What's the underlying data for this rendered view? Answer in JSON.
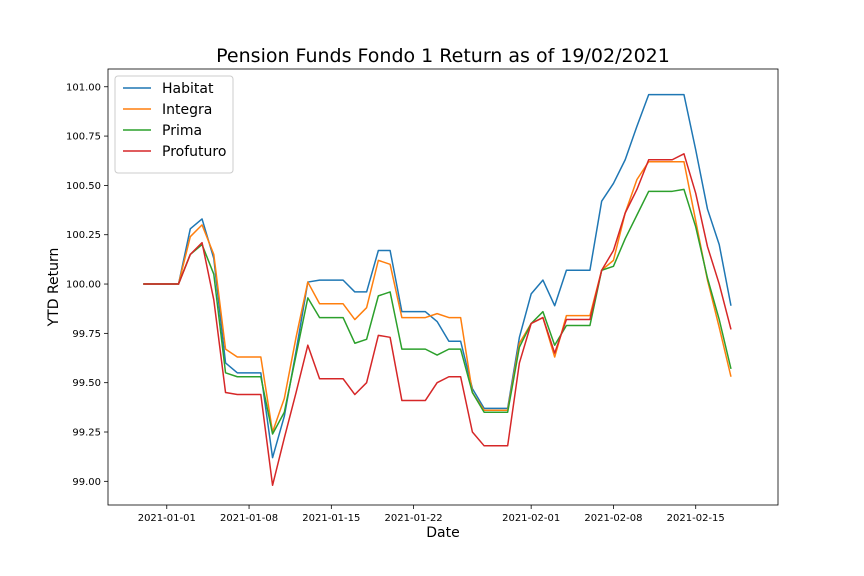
{
  "chart_data": {
    "type": "line",
    "title": "Pension Funds Fondo 1 Return as of 19/02/2021",
    "xlabel": "Date",
    "ylabel": "YTD Return",
    "x_ticks": [
      "2021-01-01",
      "2021-01-08",
      "2021-01-15",
      "2021-01-22",
      "2021-02-01",
      "2021-02-08",
      "2021-02-15"
    ],
    "y_ticks": [
      "99.00",
      "99.25",
      "99.50",
      "99.75",
      "100.00",
      "100.25",
      "100.50",
      "100.75",
      "101.00"
    ],
    "ylim": [
      98.88,
      101.09
    ],
    "xlim": [
      "2020-12-27",
      "2021-02-22"
    ],
    "legend_position": "top-left",
    "grid": false,
    "x": [
      "2020-12-30",
      "2020-12-31",
      "2021-01-01",
      "2021-01-02",
      "2021-01-03",
      "2021-01-04",
      "2021-01-05",
      "2021-01-06",
      "2021-01-07",
      "2021-01-08",
      "2021-01-09",
      "2021-01-10",
      "2021-01-11",
      "2021-01-12",
      "2021-01-13",
      "2021-01-14",
      "2021-01-15",
      "2021-01-16",
      "2021-01-17",
      "2021-01-18",
      "2021-01-19",
      "2021-01-20",
      "2021-01-21",
      "2021-01-22",
      "2021-01-23",
      "2021-01-24",
      "2021-01-25",
      "2021-01-26",
      "2021-01-27",
      "2021-01-28",
      "2021-01-29",
      "2021-01-30",
      "2021-01-31",
      "2021-02-01",
      "2021-02-02",
      "2021-02-03",
      "2021-02-04",
      "2021-02-05",
      "2021-02-06",
      "2021-02-07",
      "2021-02-08",
      "2021-02-09",
      "2021-02-10",
      "2021-02-11",
      "2021-02-12",
      "2021-02-13",
      "2021-02-14",
      "2021-02-15",
      "2021-02-16",
      "2021-02-17",
      "2021-02-18",
      "2021-02-19"
    ],
    "series": [
      {
        "name": "Habitat",
        "color": "#1f77b4",
        "values": [
          100.0,
          100.0,
          100.0,
          100.0,
          100.28,
          100.33,
          100.13,
          99.6,
          99.55,
          99.55,
          99.55,
          99.12,
          99.33,
          99.66,
          100.01,
          100.02,
          100.02,
          100.02,
          99.96,
          99.96,
          100.17,
          100.17,
          99.86,
          99.86,
          99.86,
          99.81,
          99.71,
          99.71,
          99.47,
          99.37,
          99.37,
          99.37,
          99.73,
          99.95,
          100.02,
          99.89,
          100.07,
          100.07,
          100.07,
          100.42,
          100.51,
          100.63,
          100.8,
          100.96,
          100.96,
          100.96,
          100.96,
          100.68,
          100.38,
          100.2,
          99.89,
          null
        ]
      },
      {
        "name": "Integra",
        "color": "#ff7f0e",
        "values": [
          100.0,
          100.0,
          100.0,
          100.0,
          100.24,
          100.3,
          100.15,
          99.67,
          99.63,
          99.63,
          99.63,
          99.25,
          99.42,
          99.73,
          100.01,
          99.9,
          99.9,
          99.9,
          99.82,
          99.88,
          100.12,
          100.1,
          99.83,
          99.83,
          99.83,
          99.85,
          99.83,
          99.83,
          99.45,
          99.36,
          99.36,
          99.36,
          99.7,
          99.8,
          99.83,
          99.63,
          99.84,
          99.84,
          99.84,
          100.07,
          100.12,
          100.36,
          100.53,
          100.62,
          100.62,
          100.62,
          100.62,
          100.32,
          100.02,
          99.78,
          99.53,
          null
        ]
      },
      {
        "name": "Prima",
        "color": "#2ca02c",
        "values": [
          100.0,
          100.0,
          100.0,
          100.0,
          100.15,
          100.2,
          100.05,
          99.55,
          99.53,
          99.53,
          99.53,
          99.24,
          99.35,
          99.64,
          99.93,
          99.83,
          99.83,
          99.83,
          99.7,
          99.72,
          99.94,
          99.96,
          99.67,
          99.67,
          99.67,
          99.64,
          99.67,
          99.67,
          99.45,
          99.35,
          99.35,
          99.35,
          99.68,
          99.8,
          99.86,
          99.69,
          99.79,
          99.79,
          99.79,
          100.07,
          100.09,
          100.23,
          100.35,
          100.47,
          100.47,
          100.47,
          100.48,
          100.29,
          100.03,
          99.82,
          99.57,
          null
        ]
      },
      {
        "name": "Profuturo",
        "color": "#d62728",
        "values": [
          100.0,
          100.0,
          100.0,
          100.0,
          100.15,
          100.21,
          99.92,
          99.45,
          99.44,
          99.44,
          99.44,
          98.98,
          99.22,
          99.45,
          99.69,
          99.52,
          99.52,
          99.52,
          99.44,
          99.5,
          99.74,
          99.73,
          99.41,
          99.41,
          99.41,
          99.5,
          99.53,
          99.53,
          99.25,
          99.18,
          99.18,
          99.18,
          99.6,
          99.8,
          99.83,
          99.65,
          99.82,
          99.82,
          99.82,
          100.07,
          100.17,
          100.36,
          100.48,
          100.63,
          100.63,
          100.63,
          100.66,
          100.46,
          100.19,
          100.0,
          99.77,
          null
        ]
      }
    ]
  }
}
